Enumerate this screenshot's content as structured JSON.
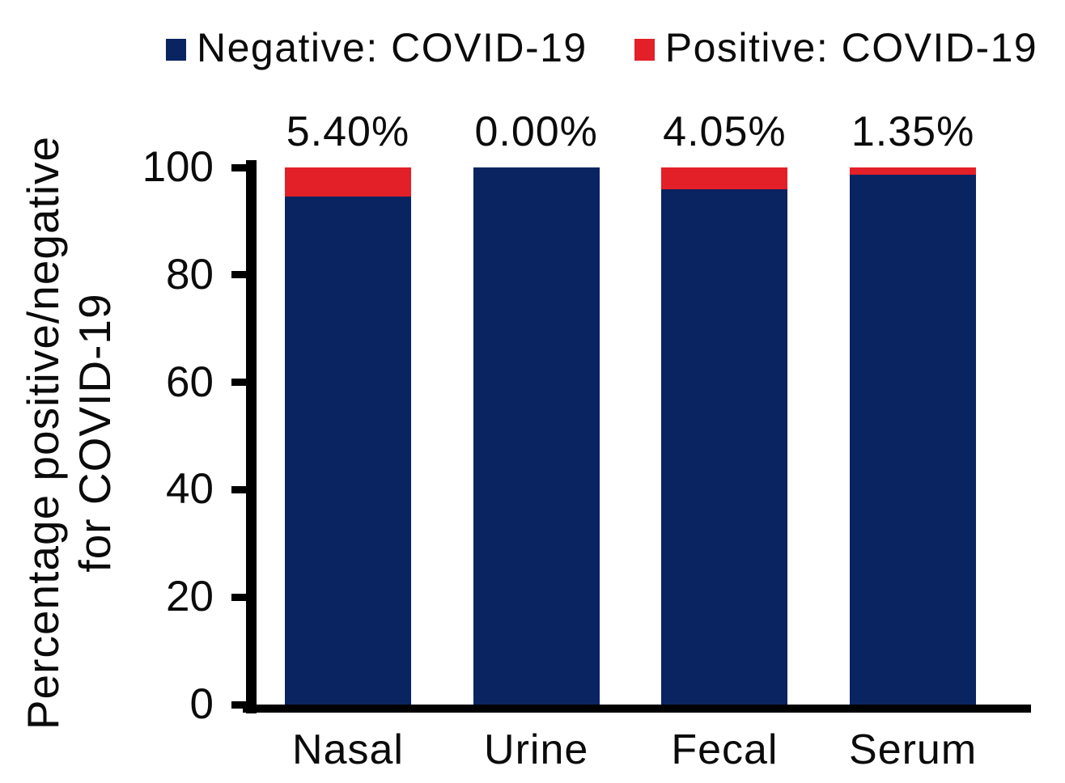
{
  "legend": {
    "position": "top"
  },
  "chart_data": {
    "type": "bar",
    "stacked": true,
    "grid": false,
    "legend_position": "top",
    "title": "",
    "xlabel": "",
    "ylabel": "Percentage positive/negative for COVID-19",
    "ylabel_line1": "Percentage positive/negative",
    "ylabel_line2": "for COVID-19",
    "categories": [
      "Nasal",
      "Urine",
      "Fecal",
      "Serum"
    ],
    "series": [
      {
        "name": "Negative: COVID-19",
        "color": "#0a2361",
        "values": [
          94.6,
          100.0,
          95.95,
          98.65
        ]
      },
      {
        "name": "Positive: COVID-19",
        "color": "#e32028",
        "values": [
          5.4,
          0.0,
          4.05,
          1.35
        ]
      }
    ],
    "bar_labels": [
      "5.40%",
      "0.00%",
      "4.05%",
      "1.35%"
    ],
    "yticks": [
      0,
      20,
      40,
      60,
      80,
      100
    ],
    "ylim": [
      0,
      100
    ],
    "axis_color": "#000000"
  }
}
